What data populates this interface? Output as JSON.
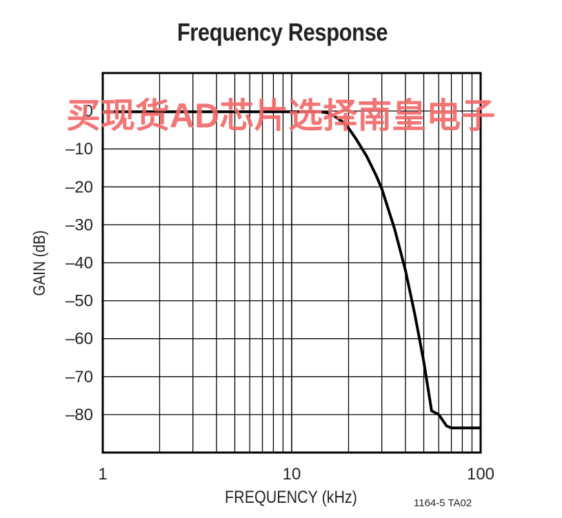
{
  "chart_data": {
    "type": "line",
    "title": "Frequency Response",
    "xlabel": "FREQUENCY (kHz)",
    "ylabel": "GAIN (dB)",
    "xscale": "log",
    "xlim": [
      1,
      100
    ],
    "ylim": [
      -90,
      10
    ],
    "xticks": [
      1,
      10,
      100
    ],
    "xtick_labels": [
      "1",
      "10",
      "100"
    ],
    "yticks": [
      0,
      -10,
      -20,
      -30,
      -40,
      -50,
      -60,
      -70,
      -80
    ],
    "ytick_labels": [
      "0",
      "–10",
      "–20",
      "–30",
      "–40",
      "–50",
      "–60",
      "–70",
      "–80"
    ],
    "grid": true,
    "series": [
      {
        "x": [
          1,
          10,
          14,
          15.5,
          17,
          18.5,
          20,
          22,
          25,
          28,
          30,
          35,
          40,
          45,
          50,
          55,
          60,
          62,
          66,
          70,
          100
        ],
        "y": [
          -0.2,
          -0.2,
          -0.2,
          -0.5,
          -1.5,
          -2.8,
          -4.5,
          -7.5,
          -12,
          -17,
          -20.5,
          -31,
          -42,
          -54,
          -66,
          -79,
          -80,
          -81,
          -83,
          -83.5,
          -83.5
        ]
      }
    ],
    "line_color": "#000000"
  },
  "figure_code": "1164-5 TA02",
  "watermark": "买现货AD芯片选择南皇电子"
}
